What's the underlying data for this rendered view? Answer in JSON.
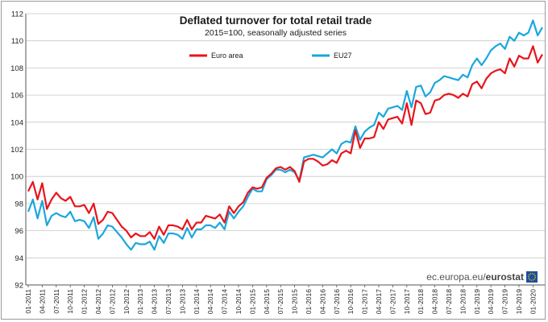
{
  "chart_data": {
    "type": "line",
    "title": "Deflated turnover for total retail trade",
    "subtitle": "2015=100, seasonally adjusted series",
    "ylim": [
      92,
      112
    ],
    "yticks": [
      92,
      94,
      96,
      98,
      100,
      102,
      104,
      106,
      108,
      110,
      112
    ],
    "grid": "horizontal",
    "legend_position": "top",
    "x_tick_labels": [
      "01-2011",
      "04-2011",
      "07-2011",
      "10-2011",
      "01-2012",
      "04-2012",
      "07-2012",
      "10-2012",
      "01-2013",
      "04-2013",
      "07-2013",
      "10-2013",
      "01-2014",
      "04-2014",
      "07-2014",
      "10-2014",
      "01-2015",
      "04-2015",
      "07-2015",
      "10-2015",
      "01-2016",
      "04-2016",
      "07-2016",
      "10-2016",
      "01-2017",
      "04-2017",
      "07-2017",
      "10-2017",
      "01-2018",
      "04-2018",
      "07-2018",
      "10-2018",
      "01-2019",
      "04-2019",
      "07-2019",
      "10-2019",
      "01-2020"
    ],
    "series": [
      {
        "name": "Euro area",
        "color": "#e8141c",
        "values": [
          98.9,
          99.6,
          98.3,
          99.5,
          97.6,
          98.3,
          98.8,
          98.4,
          98.2,
          98.5,
          97.8,
          97.8,
          97.9,
          97.3,
          98.0,
          96.5,
          96.8,
          97.4,
          97.3,
          96.8,
          96.3,
          96.0,
          95.5,
          95.8,
          95.6,
          95.6,
          95.9,
          95.4,
          96.3,
          95.7,
          96.4,
          96.4,
          96.3,
          96.1,
          96.8,
          96.1,
          96.6,
          96.6,
          97.1,
          97.0,
          96.9,
          97.2,
          96.6,
          97.8,
          97.3,
          97.8,
          98.1,
          98.8,
          99.2,
          99.1,
          99.2,
          99.9,
          100.2,
          100.6,
          100.7,
          100.5,
          100.7,
          100.4,
          99.6,
          101.1,
          101.3,
          101.3,
          101.1,
          100.8,
          100.9,
          101.2,
          101.0,
          101.7,
          101.9,
          101.7,
          103.4,
          102.1,
          102.8,
          102.8,
          102.9,
          104.0,
          103.5,
          104.2,
          104.3,
          104.4,
          103.9,
          105.4,
          103.8,
          105.6,
          105.4,
          104.6,
          104.7,
          105.6,
          105.7,
          106.0,
          106.1,
          106.0,
          105.8,
          106.1,
          105.9,
          106.8,
          107.0,
          106.5,
          107.2,
          107.6,
          107.8,
          107.9,
          107.6,
          108.7,
          108.1,
          108.9,
          108.7,
          108.7,
          109.6,
          108.4,
          109.0
        ],
        "line_width": 2.2
      },
      {
        "name": "EU27",
        "color": "#1aa7dd",
        "values": [
          97.4,
          98.3,
          96.9,
          98.2,
          96.4,
          97.1,
          97.3,
          97.1,
          97.0,
          97.4,
          96.7,
          96.8,
          96.7,
          96.2,
          97.0,
          95.4,
          95.8,
          96.4,
          96.3,
          95.9,
          95.5,
          95.0,
          94.6,
          95.1,
          95.0,
          95.0,
          95.2,
          94.6,
          95.6,
          95.1,
          95.8,
          95.8,
          95.7,
          95.4,
          96.2,
          95.5,
          96.1,
          96.1,
          96.4,
          96.4,
          96.2,
          96.6,
          96.1,
          97.4,
          96.9,
          97.4,
          97.8,
          98.5,
          99.1,
          98.9,
          98.9,
          99.8,
          100.1,
          100.5,
          100.5,
          100.3,
          100.5,
          100.3,
          99.7,
          101.4,
          101.5,
          101.6,
          101.5,
          101.4,
          101.7,
          102.0,
          101.7,
          102.4,
          102.6,
          102.5,
          103.7,
          102.7,
          103.3,
          103.6,
          103.8,
          104.7,
          104.4,
          105.0,
          105.1,
          105.2,
          104.9,
          106.3,
          105.1,
          106.6,
          106.7,
          105.9,
          106.2,
          106.9,
          107.1,
          107.4,
          107.3,
          107.2,
          107.1,
          107.5,
          107.3,
          108.2,
          108.7,
          108.2,
          108.7,
          109.3,
          109.6,
          109.8,
          109.4,
          110.3,
          110.0,
          110.6,
          110.4,
          110.6,
          111.5,
          110.4,
          111.0
        ],
        "line_width": 2.2
      }
    ]
  },
  "source": {
    "domain_prefix": "ec.europa.eu/",
    "brand": "eurostat",
    "icon": "eurostat-logo-icon"
  }
}
